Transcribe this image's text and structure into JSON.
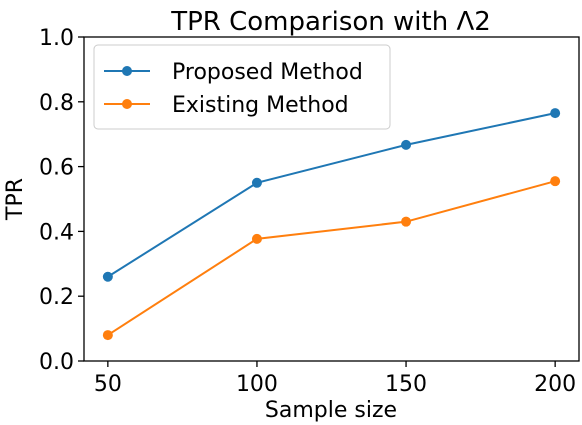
{
  "chart_data": {
    "type": "line",
    "title": "TPR Comparison with Λ2",
    "xlabel": "Sample size",
    "ylabel": "TPR",
    "x": [
      50,
      100,
      150,
      200
    ],
    "xticks": [
      "50",
      "100",
      "150",
      "200"
    ],
    "yticks": [
      "0.0",
      "0.2",
      "0.4",
      "0.6",
      "0.8",
      "1.0"
    ],
    "ylim": [
      0.0,
      1.0
    ],
    "xlim": [
      42,
      208
    ],
    "grid": false,
    "legend_position": "top-left",
    "series": [
      {
        "name": "Proposed Method",
        "color": "#1f77b4",
        "values": [
          0.26,
          0.55,
          0.667,
          0.765
        ]
      },
      {
        "name": "Existing Method",
        "color": "#ff7f0e",
        "values": [
          0.08,
          0.377,
          0.43,
          0.555
        ]
      }
    ]
  }
}
